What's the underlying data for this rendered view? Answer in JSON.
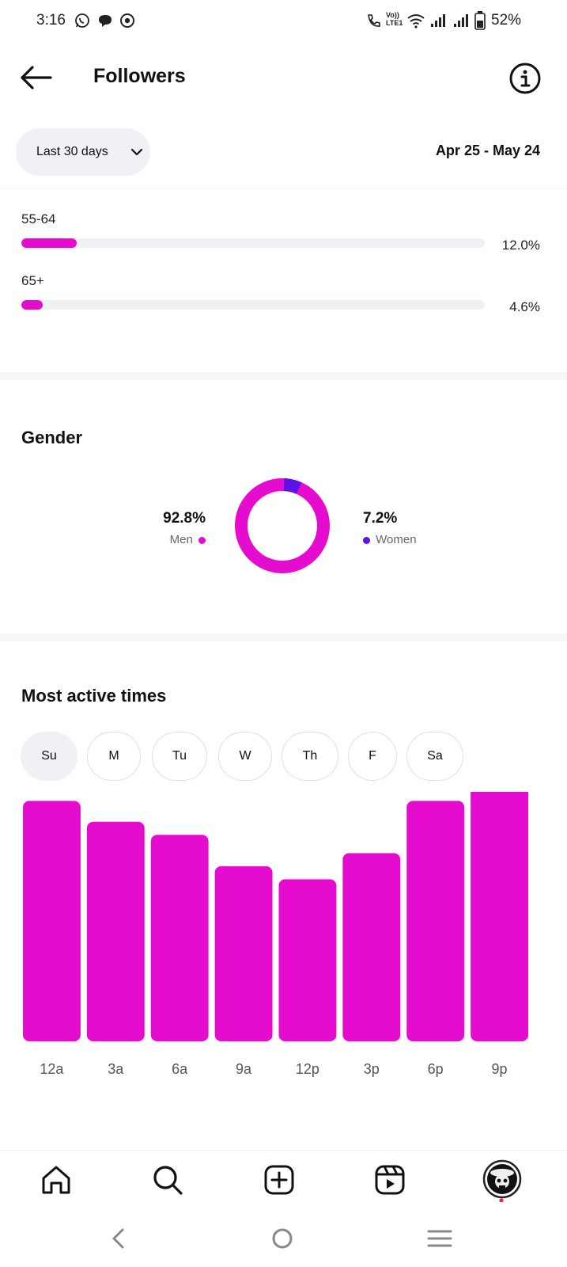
{
  "status_bar": {
    "time": "3:16",
    "battery": "52%",
    "network_label": "Vo)) LTE1"
  },
  "header": {
    "title": "Followers",
    "back_icon": "arrow-left-icon",
    "info_icon": "info-icon"
  },
  "filter": {
    "range_label": "Last 30 days",
    "date_range": "Apr 25 - May 24"
  },
  "age": {
    "rows": [
      {
        "label": "55-64",
        "percent": 12.0,
        "percent_text": "12.0%"
      },
      {
        "label": "65+",
        "percent": 4.6,
        "percent_text": "4.6%"
      }
    ]
  },
  "gender": {
    "title": "Gender",
    "men": {
      "percent": 92.8,
      "percent_text": "92.8%",
      "label": "Men",
      "color": "#e60ccf"
    },
    "women": {
      "percent": 7.2,
      "percent_text": "7.2%",
      "label": "Women",
      "color": "#5b13e6"
    }
  },
  "active_times": {
    "title": "Most active times",
    "days": [
      "Su",
      "M",
      "Tu",
      "W",
      "Th",
      "F",
      "Sa"
    ],
    "selected_day": "Su"
  },
  "chart_data": {
    "type": "bar",
    "title": "",
    "categories": [
      "12a",
      "3a",
      "6a",
      "9a",
      "12p",
      "3p",
      "6p",
      "9p"
    ],
    "values": [
      92,
      84,
      79,
      67,
      62,
      72,
      92,
      98
    ],
    "color": "#e60ccf",
    "ylim": [
      0,
      100
    ],
    "grid": false
  },
  "bottom_nav": {
    "items": [
      "home-icon",
      "search-icon",
      "create-icon",
      "reels-icon",
      "profile-avatar"
    ]
  },
  "system_nav": [
    "back-nav-icon",
    "home-nav-icon",
    "recents-nav-icon"
  ],
  "colors": {
    "accent": "#e60ccf",
    "accent_secondary": "#5b13e6",
    "track": "#eff1f4"
  }
}
